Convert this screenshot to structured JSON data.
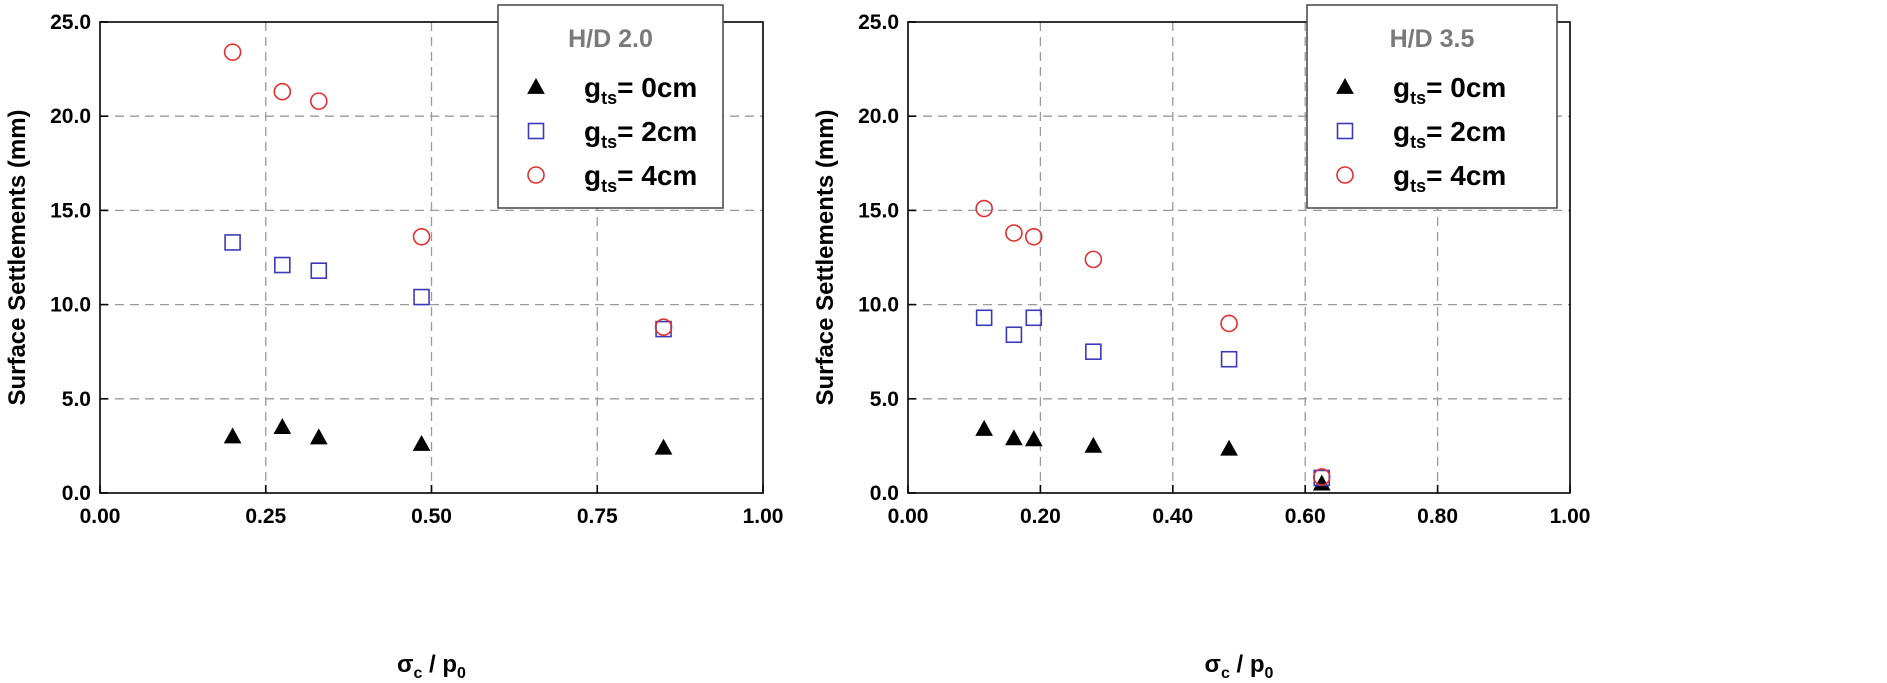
{
  "chart_data": [
    {
      "type": "scatter",
      "title": "",
      "xlabel": "σc / p0",
      "xlabel_parts": {
        "main": "σ",
        "sub1": "c",
        "sep": " / p",
        "sub2": "0"
      },
      "ylabel": "Surface Settlements  (mm)",
      "xlim": [
        0,
        1.0
      ],
      "ylim": [
        0,
        25.0
      ],
      "xticks": [
        0,
        0.25,
        0.5,
        0.75,
        1.0
      ],
      "xtick_labels": [
        "0.00",
        "0.25",
        "0.50",
        "0.75",
        "1.00"
      ],
      "yticks": [
        0,
        5,
        10,
        15,
        20,
        25
      ],
      "ytick_labels": [
        "0.0",
        "5.0",
        "10.0",
        "15.0",
        "20.0",
        "25.0"
      ],
      "grid": true,
      "legend_position": "top-right",
      "legend_title": "H/D 2.0",
      "series": [
        {
          "name": "gts= 0cm",
          "label_main": "g",
          "label_sub": "ts",
          "label_rest": "= 0cm",
          "marker": "triangle-filled",
          "color": "#000000",
          "x": [
            0.2,
            0.275,
            0.33,
            0.485,
            0.85
          ],
          "y": [
            3.0,
            3.5,
            2.95,
            2.6,
            2.4
          ]
        },
        {
          "name": "gts= 2cm",
          "label_main": "g",
          "label_sub": "ts",
          "label_rest": "= 2cm",
          "marker": "square-open",
          "color": "#3a3ab8",
          "x": [
            0.2,
            0.275,
            0.33,
            0.485,
            0.85
          ],
          "y": [
            13.3,
            12.1,
            11.8,
            10.4,
            8.7
          ]
        },
        {
          "name": "gts= 4cm",
          "label_main": "g",
          "label_sub": "ts",
          "label_rest": "= 4cm",
          "marker": "circle-open",
          "color": "#e03030",
          "x": [
            0.2,
            0.275,
            0.33,
            0.485,
            0.85
          ],
          "y": [
            23.4,
            21.3,
            20.8,
            13.6,
            8.8
          ]
        }
      ]
    },
    {
      "type": "scatter",
      "title": "",
      "xlabel": "σc / p0",
      "xlabel_parts": {
        "main": "σ",
        "sub1": "c",
        "sep": " / p",
        "sub2": "0"
      },
      "ylabel": "Surface Settlements  (mm)",
      "xlim": [
        0,
        1.0
      ],
      "ylim": [
        0,
        25.0
      ],
      "xticks": [
        0,
        0.2,
        0.4,
        0.6,
        0.8,
        1.0
      ],
      "xtick_labels": [
        "0.00",
        "0.20",
        "0.40",
        "0.60",
        "0.80",
        "1.00"
      ],
      "yticks": [
        0,
        5,
        10,
        15,
        20,
        25
      ],
      "ytick_labels": [
        "0.0",
        "5.0",
        "10.0",
        "15.0",
        "20.0",
        "25.0"
      ],
      "grid": true,
      "legend_position": "top-right",
      "legend_title": "H/D 3.5",
      "series": [
        {
          "name": "gts= 0cm",
          "label_main": "g",
          "label_sub": "ts",
          "label_rest": "= 0cm",
          "marker": "triangle-filled",
          "color": "#000000",
          "x": [
            0.115,
            0.16,
            0.19,
            0.28,
            0.485,
            0.625
          ],
          "y": [
            3.4,
            2.9,
            2.85,
            2.5,
            2.35,
            0.5
          ]
        },
        {
          "name": "gts= 2cm",
          "label_main": "g",
          "label_sub": "ts",
          "label_rest": "= 2cm",
          "marker": "square-open",
          "color": "#3a3ab8",
          "x": [
            0.115,
            0.16,
            0.19,
            0.28,
            0.485,
            0.625
          ],
          "y": [
            9.3,
            8.4,
            9.3,
            7.5,
            7.1,
            0.8
          ]
        },
        {
          "name": "gts= 4cm",
          "label_main": "g",
          "label_sub": "ts",
          "label_rest": "= 4cm",
          "marker": "circle-open",
          "color": "#e03030",
          "x": [
            0.115,
            0.16,
            0.19,
            0.28,
            0.485,
            0.625
          ],
          "y": [
            15.1,
            13.8,
            13.6,
            12.4,
            9.0,
            0.85
          ]
        }
      ]
    }
  ]
}
